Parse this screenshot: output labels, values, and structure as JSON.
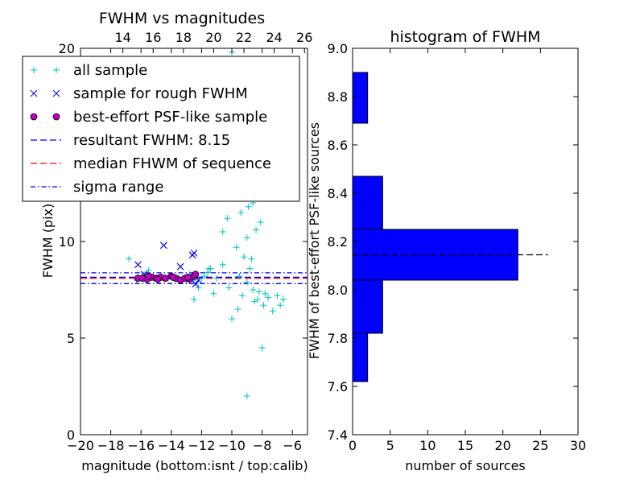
{
  "chart_data": [
    {
      "type": "scatter",
      "title": "FWHM vs magnitudes",
      "xlabel": "magnitude (bottom:isnt / top:calib)",
      "ylabel": "FWHM (pix)",
      "xlim": [
        -20,
        -5
      ],
      "ylim": [
        0,
        20
      ],
      "top_xlim": [
        11.2,
        26.2
      ],
      "x_ticks": [
        -20,
        -18,
        -16,
        -14,
        -12,
        -10,
        -8,
        -6
      ],
      "x_tick_labels": [
        "−20",
        "−18",
        "−16",
        "−14",
        "−12",
        "−10",
        "−8",
        "−6"
      ],
      "y_ticks": [
        0,
        5,
        10,
        20
      ],
      "y_tick_labels": [
        "0",
        "5",
        "10",
        "20"
      ],
      "top_x_ticks": [
        14,
        16,
        18,
        20,
        22,
        24,
        26
      ],
      "top_x_tick_labels": [
        "14",
        "16",
        "18",
        "20",
        "22",
        "24",
        "26"
      ],
      "legend": {
        "placement": "top-left",
        "entries": [
          "all sample",
          "sample for rough FWHM",
          "best-effort PSF-like sample",
          "resultant FWHM: 8.15",
          "median FHWM of sequence",
          "sigma range"
        ]
      },
      "lines": {
        "resultant_fwhm": 8.15,
        "median_fwhm": 8.1,
        "sigma_low": 7.82,
        "sigma_high": 8.38
      },
      "series": [
        {
          "name": "all sample",
          "marker": "+",
          "color": "#00bfbf",
          "points": [
            [
              -16.3,
              8.0
            ],
            [
              -15.8,
              8.3
            ],
            [
              -15.2,
              8.2
            ],
            [
              -14.8,
              8.0
            ],
            [
              -14.2,
              8.1
            ],
            [
              -13.5,
              8.1
            ],
            [
              -13.0,
              8.0
            ],
            [
              -12.8,
              8.3
            ],
            [
              -12.5,
              8.0
            ],
            [
              -12.2,
              7.6
            ],
            [
              -11.8,
              8.2
            ],
            [
              -11.5,
              8.6
            ],
            [
              -11.0,
              8.1
            ],
            [
              -12.5,
              7.0
            ],
            [
              -16.8,
              9.1
            ],
            [
              -15.5,
              8.5
            ],
            [
              -11.2,
              7.3
            ],
            [
              -10.6,
              8.8
            ],
            [
              -10.2,
              7.6
            ],
            [
              -10.0,
              6.0
            ],
            [
              -9.6,
              6.5
            ],
            [
              -9.3,
              7.2
            ],
            [
              -9.0,
              7.9
            ],
            [
              -8.8,
              8.6
            ],
            [
              -8.5,
              6.9
            ],
            [
              -8.2,
              7.4
            ],
            [
              -7.9,
              6.7
            ],
            [
              -7.6,
              7.1
            ],
            [
              -7.3,
              6.4
            ],
            [
              -7.0,
              7.2
            ],
            [
              -6.8,
              6.7
            ],
            [
              -6.6,
              7.0
            ],
            [
              -8.0,
              4.5
            ],
            [
              -9.0,
              2.0
            ],
            [
              -10.0,
              19.8
            ],
            [
              -9.4,
              11.5
            ],
            [
              -9.0,
              10.2
            ],
            [
              -8.7,
              9.1
            ],
            [
              -8.4,
              10.6
            ],
            [
              -8.1,
              11.0
            ],
            [
              -10.6,
              10.5
            ],
            [
              -11.4,
              8.6
            ],
            [
              -9.2,
              9.2
            ],
            [
              -8.9,
              11.8
            ],
            [
              -8.6,
              12.0
            ],
            [
              -8.3,
              12.8
            ],
            [
              -8.6,
              7.5
            ],
            [
              -8.3,
              7.0
            ],
            [
              -7.8,
              7.3
            ],
            [
              -10.3,
              11.2
            ],
            [
              -9.7,
              9.7
            ],
            [
              -9.5,
              8.2
            ],
            [
              -11.6,
              8.4
            ],
            [
              -12.0,
              8.1
            ]
          ]
        },
        {
          "name": "sample for rough FWHM",
          "marker": "x",
          "color": "#0000ff",
          "points": [
            [
              -16.2,
              8.8
            ],
            [
              -14.5,
              9.8
            ],
            [
              -12.6,
              9.3
            ],
            [
              -12.5,
              9.4
            ],
            [
              -13.4,
              8.7
            ],
            [
              -12.2,
              8.0
            ],
            [
              -15.8,
              8.3
            ],
            [
              -12.4,
              7.8
            ]
          ]
        },
        {
          "name": "best-effort PSF-like sample",
          "marker": "o",
          "color": "#bf00bf",
          "points": [
            [
              -16.2,
              8.1
            ],
            [
              -15.9,
              8.1
            ],
            [
              -15.6,
              8.05
            ],
            [
              -15.3,
              8.15
            ],
            [
              -15.0,
              8.1
            ],
            [
              -14.7,
              8.15
            ],
            [
              -14.4,
              8.1
            ],
            [
              -14.0,
              8.2
            ],
            [
              -13.7,
              8.1
            ],
            [
              -13.4,
              8.0
            ],
            [
              -13.1,
              8.1
            ],
            [
              -12.8,
              8.05
            ],
            [
              -12.5,
              8.2
            ],
            [
              -12.4,
              8.3
            ],
            [
              -14.9,
              8.05
            ],
            [
              -13.9,
              8.15
            ],
            [
              -15.5,
              8.2
            ],
            [
              -12.9,
              8.15
            ]
          ]
        }
      ]
    },
    {
      "type": "bar",
      "orientation": "horizontal",
      "title": "histogram of FWHM",
      "xlabel": "number of sources",
      "ylabel": "FWHM of best-effort PSF-like sources",
      "xlim": [
        0,
        30
      ],
      "ylim": [
        7.4,
        9.0
      ],
      "x_ticks": [
        0,
        5,
        10,
        15,
        20,
        25,
        30
      ],
      "x_tick_labels": [
        "0",
        "5",
        "10",
        "15",
        "20",
        "25",
        "30"
      ],
      "y_ticks": [
        7.4,
        7.6,
        7.8,
        8.0,
        8.2,
        8.4,
        8.6,
        8.8,
        9.0
      ],
      "y_tick_labels": [
        "7.4",
        "7.6",
        "7.8",
        "8.0",
        "8.2",
        "8.4",
        "8.6",
        "8.8",
        "9.0"
      ],
      "bar_color": "#0000ff",
      "bins": [
        {
          "low": 7.62,
          "high": 7.82,
          "count": 2
        },
        {
          "low": 7.82,
          "high": 8.04,
          "count": 4
        },
        {
          "low": 8.04,
          "high": 8.25,
          "count": 22
        },
        {
          "low": 8.25,
          "high": 8.47,
          "count": 4
        },
        {
          "low": 8.69,
          "high": 8.9,
          "count": 2
        }
      ],
      "reference_line": {
        "y": 8.145,
        "x_start": 0,
        "x_end": 26
      }
    }
  ]
}
